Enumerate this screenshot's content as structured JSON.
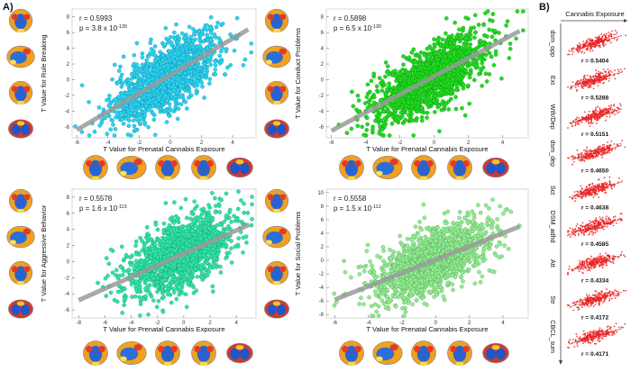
{
  "panels": {
    "a": "A)",
    "b": "B)"
  },
  "chart_data": [
    {
      "type": "scatter",
      "xlabel": "T Value for Prenatal Cannabis Exposure",
      "ylabel": "T Value for Rule Breaking",
      "xlim": [
        -6.3,
        5.5
      ],
      "ylim": [
        -7.4,
        9
      ],
      "xticks": [
        -6,
        -4,
        -2,
        0,
        2,
        4
      ],
      "yticks": [
        -6,
        -4,
        -2,
        0,
        2,
        4,
        6,
        8
      ],
      "r_text": "r = 0.5993",
      "p_base": "p = 3.8 x 10",
      "p_exp": "-135",
      "r": 0.5993,
      "point_color": "#29d4f3",
      "fit_line": [
        [
          -6,
          -6.4
        ],
        [
          5,
          6.4
        ]
      ],
      "n_points": 1500,
      "x_spread": 1.7,
      "noise_sd": 2.0
    },
    {
      "type": "scatter",
      "xlabel": "T Value for Prenatal Cannabis Exposure",
      "ylabel": "T Value for Conduct Problems",
      "xlim": [
        -6.3,
        5.5
      ],
      "ylim": [
        -7.4,
        9
      ],
      "xticks": [
        -6,
        -4,
        -2,
        0,
        2,
        4
      ],
      "yticks": [
        -6,
        -4,
        -2,
        0,
        2,
        4,
        6,
        8
      ],
      "r_text": "r = 0.5898",
      "p_base": "p = 6.5 x 10",
      "p_exp": "-130",
      "r": 0.5898,
      "point_color": "#1fdc1f",
      "fit_line": [
        [
          -6,
          -6.5
        ],
        [
          5,
          6.2
        ]
      ],
      "n_points": 1500,
      "x_spread": 1.7,
      "noise_sd": 2.0
    },
    {
      "type": "scatter",
      "xlabel": "T Value for Prenatal Cannabis Exposure",
      "ylabel": "T Value for Aggressive Behavior",
      "xlim": [
        -8.5,
        5.5
      ],
      "ylim": [
        -7,
        9
      ],
      "xticks": [
        -8,
        -6,
        -4,
        -2,
        0,
        2,
        4
      ],
      "yticks": [
        -6,
        -4,
        -2,
        0,
        2,
        4,
        6,
        8
      ],
      "r_text": "r = 0.5578",
      "p_base": "p = 1.6 x 10",
      "p_exp": "-113",
      "r": 0.5578,
      "point_color": "#2ee6a6",
      "fit_line": [
        [
          -8,
          -4.8
        ],
        [
          5,
          4.6
        ]
      ],
      "n_points": 1500,
      "x_spread": 2.0,
      "noise_sd": 2.1
    },
    {
      "type": "scatter",
      "xlabel": "T Value for Prenatal Cannabis Exposure",
      "ylabel": "T Value for Social Problems",
      "xlim": [
        -6.5,
        5.5
      ],
      "ylim": [
        -8.5,
        10.5
      ],
      "xticks": [
        -6,
        -4,
        -2,
        0,
        2,
        4
      ],
      "yticks": [
        -8,
        -6,
        -4,
        -2,
        0,
        2,
        4,
        6,
        8,
        10
      ],
      "r_text": "r = 0.5558",
      "p_base": "p = 1.5 x 10",
      "p_exp": "-112",
      "r": 0.5558,
      "point_color": "#8fef8f",
      "fit_line": [
        [
          -6,
          -5.8
        ],
        [
          5,
          5.0
        ]
      ],
      "n_points": 1500,
      "x_spread": 1.8,
      "noise_sd": 2.4
    }
  ],
  "panel_b": {
    "axis_label": "Cannabis Exposure",
    "point_color": "#ee2020",
    "items": [
      {
        "label": "dsm_opp",
        "r_text": "r = 0.5404",
        "r": 0.5404
      },
      {
        "label": "Ext",
        "r_text": "r = 0.5288",
        "r": 0.5288
      },
      {
        "label": "Wth/Dep",
        "r_text": "r = 0.5151",
        "r": 0.5151
      },
      {
        "label": "dsm_dep",
        "r_text": "r = 0.4650",
        "r": 0.465
      },
      {
        "label": "Sct",
        "r_text": "r = 0.4638",
        "r": 0.4638
      },
      {
        "label": "DSM_adhd",
        "r_text": "r = 0.4585",
        "r": 0.4585
      },
      {
        "label": "Att",
        "r_text": "r = 0.4334",
        "r": 0.4334
      },
      {
        "label": "Str",
        "r_text": "r = 0.4172",
        "r": 0.4172
      },
      {
        "label": "CBCL_sum",
        "r_text": "r = 0.4171",
        "r": 0.4171
      }
    ]
  }
}
